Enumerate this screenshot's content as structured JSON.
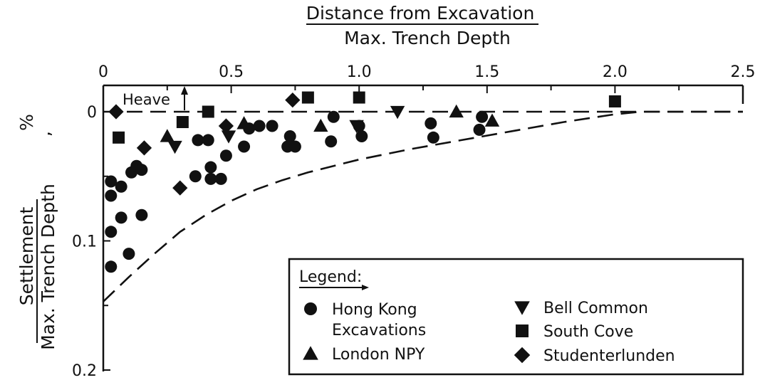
{
  "chart_data": {
    "type": "scatter",
    "title": "",
    "xlabel": {
      "top": "Distance from Excavation",
      "bottom": "Max. Trench Depth"
    },
    "ylabel": {
      "top": "Settlement",
      "bottom": "Max. Trench Depth",
      "unit": "%"
    },
    "xlim": [
      0,
      2.5
    ],
    "ylim": [
      0.2,
      -0.02
    ],
    "x_ticks": [
      0,
      0.5,
      1.0,
      1.5,
      2.0,
      2.5
    ],
    "x_tick_labels": [
      "0",
      "0.5",
      "1.0",
      "1.5",
      "2.0",
      "2.5"
    ],
    "y_ticks": [
      0,
      0.1,
      0.2
    ],
    "y_tick_labels": [
      "0",
      "0.1",
      "0.2"
    ],
    "heave_label": "Heave",
    "legend": {
      "title": "Legend:",
      "position": "bottom-right",
      "entries": [
        {
          "marker": "circle",
          "text": [
            "Hong Kong",
            "Excavations"
          ]
        },
        {
          "marker": "triangle-up",
          "text": [
            "London NPY"
          ]
        },
        {
          "marker": "triangle-down",
          "text": [
            "Bell Common"
          ]
        },
        {
          "marker": "square",
          "text": [
            "South Cove"
          ]
        },
        {
          "marker": "diamond",
          "text": [
            "Studenterlunden"
          ]
        }
      ]
    },
    "reference_lines": [
      {
        "style": "dashed",
        "points": [
          [
            0,
            0
          ],
          [
            2.5,
            0
          ]
        ]
      },
      {
        "style": "dashed",
        "points": [
          [
            0,
            0.147
          ],
          [
            0.1,
            0.128
          ],
          [
            0.2,
            0.11
          ],
          [
            0.3,
            0.093
          ],
          [
            0.4,
            0.08
          ],
          [
            0.5,
            0.069
          ],
          [
            0.6,
            0.06
          ],
          [
            0.7,
            0.053
          ],
          [
            0.8,
            0.047
          ],
          [
            0.9,
            0.042
          ],
          [
            1.0,
            0.037
          ],
          [
            1.2,
            0.029
          ],
          [
            1.4,
            0.022
          ],
          [
            1.6,
            0.015
          ],
          [
            1.8,
            0.008
          ],
          [
            2.0,
            0.002
          ],
          [
            2.1,
            0
          ],
          [
            2.5,
            0
          ]
        ]
      }
    ],
    "series": [
      {
        "name": "Hong Kong Excavations",
        "marker": "circle",
        "points": [
          [
            0.03,
            0.054
          ],
          [
            0.03,
            0.065
          ],
          [
            0.03,
            0.093
          ],
          [
            0.03,
            0.12
          ],
          [
            0.07,
            0.058
          ],
          [
            0.07,
            0.082
          ],
          [
            0.1,
            0.11
          ],
          [
            0.11,
            0.047
          ],
          [
            0.13,
            0.042
          ],
          [
            0.15,
            0.045
          ],
          [
            0.15,
            0.08
          ],
          [
            0.36,
            0.05
          ],
          [
            0.37,
            0.022
          ],
          [
            0.41,
            0.022
          ],
          [
            0.42,
            0.043
          ],
          [
            0.42,
            0.052
          ],
          [
            0.46,
            0.052
          ],
          [
            0.48,
            0.034
          ],
          [
            0.55,
            0.027
          ],
          [
            0.57,
            0.013
          ],
          [
            0.61,
            0.011
          ],
          [
            0.66,
            0.011
          ],
          [
            0.72,
            0.027
          ],
          [
            0.73,
            0.019
          ],
          [
            0.75,
            0.027
          ],
          [
            0.89,
            0.023
          ],
          [
            0.9,
            0.004
          ],
          [
            1.0,
            0.011
          ],
          [
            1.01,
            0.019
          ],
          [
            1.28,
            0.009
          ],
          [
            1.29,
            0.02
          ],
          [
            1.47,
            0.014
          ],
          [
            1.48,
            0.004
          ]
        ]
      },
      {
        "name": "London NPY",
        "marker": "triangle-up",
        "points": [
          [
            0.25,
            0.019
          ],
          [
            0.55,
            0.009
          ],
          [
            0.85,
            0.011
          ],
          [
            1.38,
            0.0
          ],
          [
            1.52,
            0.007
          ]
        ]
      },
      {
        "name": "Bell Common",
        "marker": "triangle-down",
        "points": [
          [
            0.28,
            0.027
          ],
          [
            0.49,
            0.019
          ],
          [
            1.15,
            0.0
          ],
          [
            0.99,
            0.011
          ]
        ]
      },
      {
        "name": "South Cove",
        "marker": "square",
        "points": [
          [
            0.06,
            0.02
          ],
          [
            0.31,
            0.008
          ],
          [
            0.41,
            0.0
          ],
          [
            0.8,
            -0.011
          ],
          [
            1.0,
            -0.011
          ],
          [
            2.0,
            -0.008
          ]
        ]
      },
      {
        "name": "Studenterlunden",
        "marker": "diamond",
        "points": [
          [
            0.05,
            0.0
          ],
          [
            0.16,
            0.028
          ],
          [
            0.3,
            0.059
          ],
          [
            0.48,
            0.011
          ],
          [
            0.74,
            -0.009
          ]
        ]
      }
    ]
  }
}
